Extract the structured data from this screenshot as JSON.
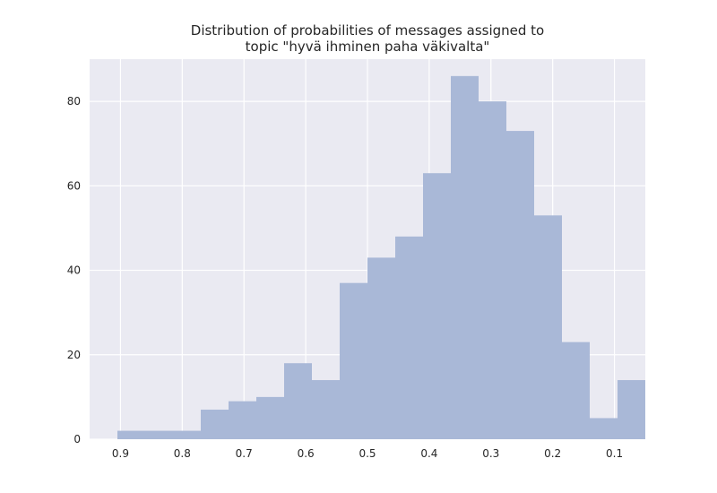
{
  "chart_data": {
    "type": "bar",
    "title_lines": [
      "Distribution of probabilities of messages assigned to",
      "topic \"hyvä ihminen paha väkivalta\""
    ],
    "xlabel": "",
    "ylabel": "",
    "x_axis_reversed": true,
    "xlim": [
      0.95,
      0.05
    ],
    "ylim": [
      0,
      90
    ],
    "x_ticks": [
      0.9,
      0.8,
      0.7,
      0.6,
      0.5,
      0.4,
      0.3,
      0.2,
      0.1
    ],
    "x_tick_labels": [
      "0.9",
      "0.8",
      "0.7",
      "0.6",
      "0.5",
      "0.4",
      "0.3",
      "0.2",
      "0.1"
    ],
    "y_ticks": [
      0,
      20,
      40,
      60,
      80
    ],
    "y_tick_labels": [
      "0",
      "20",
      "40",
      "60",
      "80"
    ],
    "grid": true,
    "bins": [
      {
        "x_start": 0.905,
        "x_end": 0.86,
        "count": 2
      },
      {
        "x_start": 0.86,
        "x_end": 0.815,
        "count": 2
      },
      {
        "x_start": 0.815,
        "x_end": 0.77,
        "count": 2
      },
      {
        "x_start": 0.77,
        "x_end": 0.725,
        "count": 7
      },
      {
        "x_start": 0.725,
        "x_end": 0.68,
        "count": 9
      },
      {
        "x_start": 0.68,
        "x_end": 0.635,
        "count": 10
      },
      {
        "x_start": 0.635,
        "x_end": 0.59,
        "count": 18
      },
      {
        "x_start": 0.59,
        "x_end": 0.545,
        "count": 14
      },
      {
        "x_start": 0.545,
        "x_end": 0.5,
        "count": 37
      },
      {
        "x_start": 0.5,
        "x_end": 0.455,
        "count": 43
      },
      {
        "x_start": 0.455,
        "x_end": 0.41,
        "count": 48
      },
      {
        "x_start": 0.41,
        "x_end": 0.365,
        "count": 63
      },
      {
        "x_start": 0.365,
        "x_end": 0.32,
        "count": 86
      },
      {
        "x_start": 0.32,
        "x_end": 0.275,
        "count": 80
      },
      {
        "x_start": 0.275,
        "x_end": 0.23,
        "count": 73
      },
      {
        "x_start": 0.23,
        "x_end": 0.185,
        "count": 53
      },
      {
        "x_start": 0.185,
        "x_end": 0.14,
        "count": 23
      },
      {
        "x_start": 0.14,
        "x_end": 0.095,
        "count": 5
      },
      {
        "x_start": 0.095,
        "x_end": 0.05,
        "count": 14
      }
    ],
    "colors": {
      "bar": "#a9b8d7",
      "plot_background": "#eaeaf2",
      "grid": "#ffffff",
      "text": "#262626"
    }
  }
}
